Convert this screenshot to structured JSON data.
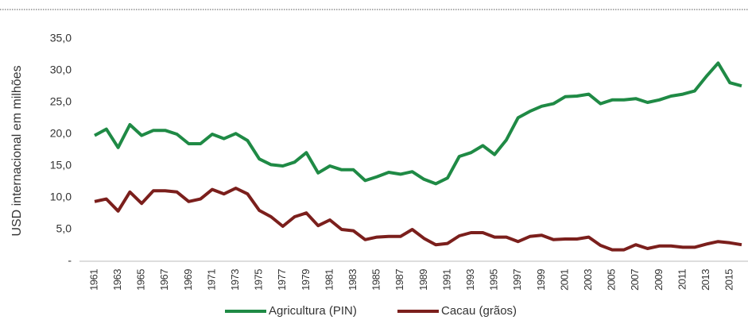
{
  "chart_data": {
    "type": "line",
    "y_label": "USD internacional em milhões",
    "categories": [
      "1961",
      null,
      "1963",
      null,
      "1965",
      null,
      "1967",
      null,
      "1969",
      null,
      "1971",
      null,
      "1973",
      null,
      "1975",
      null,
      "1977",
      null,
      "1979",
      null,
      "1981",
      null,
      "1983",
      null,
      "1985",
      null,
      "1987",
      null,
      "1989",
      null,
      "1991",
      null,
      "1993",
      null,
      "1995",
      null,
      "1997",
      null,
      "1999",
      null,
      "2001",
      null,
      "2003",
      null,
      "2005",
      null,
      "2007",
      null,
      "2009",
      null,
      "2011",
      null,
      "2013",
      null,
      "2015",
      null
    ],
    "series": [
      {
        "name": "Agricultura (PIN)",
        "color": "#1f8a45",
        "values": [
          19.8,
          20.8,
          17.9,
          21.5,
          19.8,
          20.6,
          20.6,
          20.0,
          18.5,
          18.5,
          20.0,
          19.3,
          20.1,
          19.0,
          16.1,
          15.2,
          15.0,
          15.6,
          17.1,
          13.9,
          15.0,
          14.4,
          14.4,
          12.7,
          13.3,
          14.0,
          13.7,
          14.1,
          12.9,
          12.2,
          13.1,
          16.5,
          17.1,
          18.2,
          16.8,
          19.1,
          22.6,
          23.6,
          24.4,
          24.8,
          25.9,
          26.0,
          26.3,
          24.8,
          25.4,
          25.4,
          25.6,
          25.0,
          25.4,
          26.0,
          26.3,
          26.8,
          29.1,
          31.2,
          28.1,
          27.6
        ]
      },
      {
        "name": "Cacau (grãos)",
        "color": "#7b1f1c",
        "values": [
          9.4,
          9.8,
          7.9,
          10.9,
          9.1,
          11.1,
          11.1,
          10.9,
          9.4,
          9.8,
          11.3,
          10.6,
          11.5,
          10.6,
          8.0,
          7.0,
          5.5,
          7.0,
          7.6,
          5.6,
          6.5,
          5.0,
          4.8,
          3.4,
          3.8,
          3.9,
          3.9,
          5.0,
          3.6,
          2.6,
          2.8,
          4.0,
          4.5,
          4.5,
          3.8,
          3.8,
          3.1,
          3.9,
          4.1,
          3.4,
          3.5,
          3.5,
          3.8,
          2.5,
          1.8,
          1.8,
          2.6,
          2.0,
          2.4,
          2.4,
          2.2,
          2.2,
          2.7,
          3.1,
          2.9,
          2.6
        ]
      }
    ],
    "ylim": [
      0,
      35
    ],
    "yticks": [
      {
        "value": 0,
        "label": "-"
      },
      {
        "value": 5,
        "label": "5,0"
      },
      {
        "value": 10,
        "label": "10,0"
      },
      {
        "value": 15,
        "label": "15,0"
      },
      {
        "value": 20,
        "label": "20,0"
      },
      {
        "value": 25,
        "label": "25,0"
      },
      {
        "value": 30,
        "label": "30,0"
      },
      {
        "value": 35,
        "label": "35,0"
      }
    ],
    "grid": false,
    "legend": "bottom"
  }
}
